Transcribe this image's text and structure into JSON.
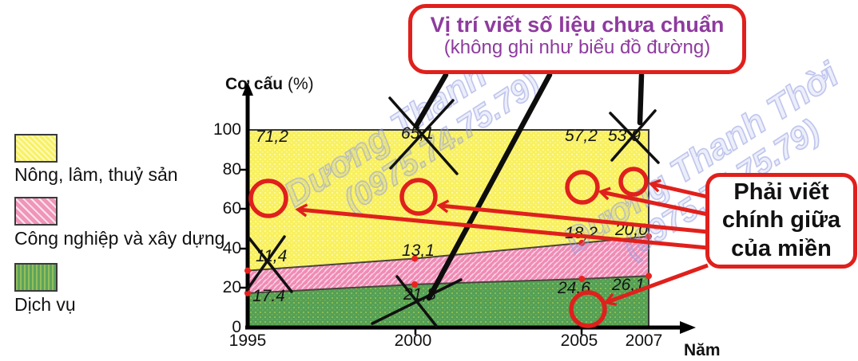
{
  "callouts": {
    "top": {
      "line1": "Vị trí viết số liệu chưa chuẩn",
      "line2": "(không ghi như biểu đồ đường)",
      "border_color": "#e0201c",
      "text_color": "#8e3b9e"
    },
    "right": {
      "line1": "Phải viết",
      "line2": "chính giữa",
      "line3": "của miền",
      "border_color": "#e0201c",
      "text_color": "#111111"
    }
  },
  "watermark": {
    "name": "Dương Thanh Thời",
    "phone": "(0975.74.75.79)"
  },
  "legend": {
    "items": [
      {
        "label": "Nông, lâm, thuỷ sản",
        "color": "#f8f163"
      },
      {
        "label": "Công nghiệp và xây dựng",
        "color": "#f095b8"
      },
      {
        "label": "Dịch vụ",
        "color": "#5ea35e"
      }
    ]
  },
  "axes": {
    "y_title": "Cơ cấu",
    "y_unit": "(%)",
    "x_title": "Năm",
    "y_ticks": [
      "100",
      "80",
      "60",
      "40",
      "20",
      "0"
    ],
    "x_ticks": [
      "1995",
      "2000",
      "2005",
      "2007"
    ]
  },
  "chart_data": {
    "type": "area",
    "stacked": true,
    "x": [
      1995,
      2000,
      2005,
      2007
    ],
    "series": [
      {
        "name": "Dịch vụ",
        "color": "#5ea35e",
        "values": [
          17.4,
          21.8,
          24.6,
          26.1
        ],
        "labels": [
          "17.4",
          "21,8",
          "24,6",
          "26,1"
        ]
      },
      {
        "name": "Công nghiệp và xây dựng",
        "color": "#f095b8",
        "values": [
          11.4,
          13.1,
          18.2,
          20.0
        ],
        "labels": [
          "11,4",
          "13,1",
          "18,2",
          "20,0"
        ]
      },
      {
        "name": "Nông, lâm, thuỷ sản",
        "color": "#f8f163",
        "values": [
          71.2,
          65.1,
          57.2,
          53.9
        ],
        "labels": [
          "71,2",
          "65,1",
          "57,2",
          "53,9"
        ]
      }
    ],
    "ylim": [
      0,
      100
    ],
    "ylabel": "Cơ cấu (%)",
    "xlabel": "Năm",
    "legend_position": "left",
    "grid": false,
    "crossed_out_values": [
      "65,1",
      "53,9",
      "11,4",
      "21,8"
    ],
    "annotation_colors": {
      "red": "#e0201c",
      "black": "#101010"
    }
  }
}
